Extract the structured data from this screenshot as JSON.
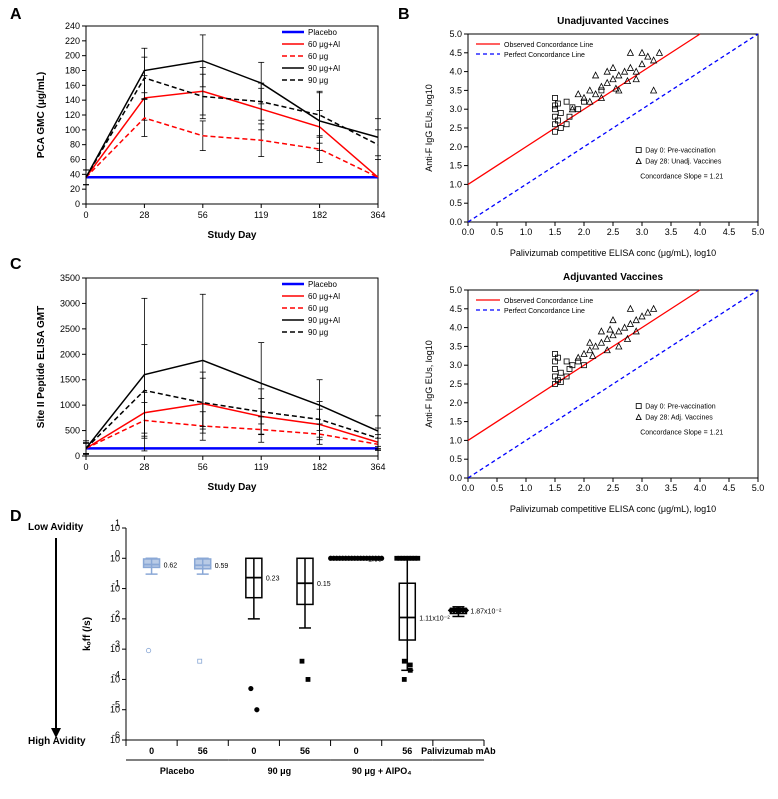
{
  "panels": {
    "A": "A",
    "B": "B",
    "C": "C",
    "D": "D"
  },
  "chartA": {
    "type": "line",
    "title": "",
    "xlabel": "Study Day",
    "ylabel": "PCA GMC (μg/mL)",
    "xcats": [
      "0",
      "28",
      "56",
      "119",
      "182",
      "364"
    ],
    "ylim": [
      0,
      240
    ],
    "ytick_step": 20,
    "series": [
      {
        "label": "Placebo",
        "color": "#0000ff",
        "dash": "0",
        "width": 2.5,
        "y": [
          36,
          36,
          36,
          36,
          36,
          36
        ],
        "err": [
          0,
          0,
          0,
          0,
          0,
          0
        ]
      },
      {
        "label": "60 μg+Al",
        "color": "#ff0000",
        "dash": "0",
        "width": 1.5,
        "y": [
          36,
          143,
          152,
          128,
          104,
          36
        ],
        "err": [
          10,
          30,
          32,
          28,
          22,
          0
        ]
      },
      {
        "label": "60 μg",
        "color": "#ff0000",
        "dash": "5,3",
        "width": 1.5,
        "y": [
          36,
          116,
          92,
          86,
          74,
          36
        ],
        "err": [
          10,
          25,
          20,
          22,
          18,
          0
        ]
      },
      {
        "label": "90 μg+Al",
        "color": "#000000",
        "dash": "0",
        "width": 1.5,
        "y": [
          36,
          180,
          193,
          163,
          112,
          90
        ],
        "err": [
          10,
          30,
          35,
          28,
          40,
          25
        ]
      },
      {
        "label": "90 μg",
        "color": "#000000",
        "dash": "5,3",
        "width": 1.5,
        "y": [
          36,
          170,
          145,
          138,
          120,
          80
        ],
        "err": [
          10,
          28,
          30,
          25,
          30,
          20
        ]
      }
    ]
  },
  "chartC": {
    "type": "line",
    "xlabel": "Study Day",
    "ylabel": "Site II Peptide ELISA GMT",
    "xcats": [
      "0",
      "28",
      "56",
      "119",
      "182",
      "364"
    ],
    "ylim": [
      0,
      3500
    ],
    "ytick_step": 500,
    "series": [
      {
        "label": "Placebo",
        "color": "#0000ff",
        "dash": "0",
        "width": 2.5,
        "y": [
          150,
          150,
          150,
          150,
          150,
          150
        ],
        "err": [
          0,
          0,
          0,
          0,
          0,
          0
        ]
      },
      {
        "label": "60 μg+Al",
        "color": "#ff0000",
        "dash": "0",
        "width": 1.5,
        "y": [
          150,
          850,
          1030,
          780,
          620,
          270
        ],
        "err": [
          100,
          400,
          500,
          350,
          300,
          150
        ]
      },
      {
        "label": "60 μg",
        "color": "#ff0000",
        "dash": "5,3",
        "width": 1.5,
        "y": [
          150,
          700,
          590,
          520,
          430,
          230
        ],
        "err": [
          100,
          350,
          280,
          250,
          200,
          120
        ]
      },
      {
        "label": "90 μg+Al",
        "color": "#000000",
        "dash": "0",
        "width": 1.5,
        "y": [
          150,
          1600,
          1880,
          1430,
          1000,
          490
        ],
        "err": [
          150,
          1500,
          1300,
          800,
          500,
          300
        ]
      },
      {
        "label": "90 μg",
        "color": "#000000",
        "dash": "5,3",
        "width": 1.5,
        "y": [
          150,
          1290,
          1050,
          870,
          720,
          350
        ],
        "err": [
          120,
          900,
          600,
          450,
          350,
          200
        ]
      }
    ]
  },
  "chartB": {
    "titles": [
      "Unadjuvanted Vaccines",
      "Adjuvanted Vaccines"
    ],
    "xlabel": "Palivizumab competitive ELISA conc (μg/mL), log10",
    "ylabel": "Anti-F IgG EUs, log10",
    "xlim": [
      0,
      5
    ],
    "ylim": [
      0,
      5
    ],
    "tick_step": 0.5,
    "obs_line": {
      "label": "Observed Concordance Line",
      "color": "#ff0000",
      "intercept": 1.0,
      "slope": 1.0
    },
    "perfect_line": {
      "label": "Perfect Concordance Line",
      "color": "#0000ff",
      "dash": "4,3"
    },
    "marker_legend": [
      {
        "shape": "square",
        "label": "Day 0: Pre-vaccination"
      },
      {
        "shape": "triangle",
        "label": "Day 28: Unadj. Vaccines"
      }
    ],
    "marker_legend2": [
      {
        "shape": "square",
        "label": "Day 0: Pre-vaccination"
      },
      {
        "shape": "triangle",
        "label": "Day 28: Adj. Vaccines"
      }
    ],
    "slope_annot": "Concordance Slope = 1.21",
    "top": {
      "squares": [
        [
          1.5,
          2.4
        ],
        [
          1.5,
          2.6
        ],
        [
          1.5,
          2.8
        ],
        [
          1.5,
          3.0
        ],
        [
          1.5,
          3.1
        ],
        [
          1.55,
          2.7
        ],
        [
          1.6,
          2.9
        ],
        [
          1.55,
          3.15
        ],
        [
          1.7,
          3.2
        ],
        [
          1.8,
          3.05
        ],
        [
          1.7,
          2.6
        ],
        [
          1.75,
          2.8
        ],
        [
          1.9,
          3.0
        ],
        [
          2.0,
          3.2
        ],
        [
          1.6,
          2.5
        ],
        [
          1.5,
          3.3
        ],
        [
          2.3,
          3.5
        ]
      ],
      "triangles": [
        [
          1.8,
          3.0
        ],
        [
          2.0,
          3.3
        ],
        [
          2.1,
          3.5
        ],
        [
          2.2,
          3.4
        ],
        [
          2.3,
          3.6
        ],
        [
          2.4,
          3.7
        ],
        [
          2.5,
          3.8
        ],
        [
          2.6,
          3.9
        ],
        [
          2.7,
          4.0
        ],
        [
          2.8,
          4.1
        ],
        [
          2.9,
          4.0
        ],
        [
          3.0,
          4.2
        ],
        [
          3.1,
          4.4
        ],
        [
          3.2,
          4.3
        ],
        [
          3.3,
          4.5
        ],
        [
          3.0,
          4.5
        ],
        [
          2.8,
          4.5
        ],
        [
          2.5,
          4.1
        ],
        [
          2.2,
          3.9
        ],
        [
          2.4,
          4.0
        ],
        [
          2.6,
          3.5
        ],
        [
          2.9,
          3.8
        ],
        [
          3.2,
          3.5
        ],
        [
          1.9,
          3.4
        ],
        [
          2.1,
          3.2
        ],
        [
          2.3,
          3.3
        ],
        [
          2.55,
          3.55
        ],
        [
          2.75,
          3.75
        ]
      ]
    },
    "bottom": {
      "squares": [
        [
          1.5,
          2.5
        ],
        [
          1.5,
          2.7
        ],
        [
          1.5,
          2.9
        ],
        [
          1.5,
          3.1
        ],
        [
          1.5,
          3.3
        ],
        [
          1.55,
          2.6
        ],
        [
          1.6,
          2.8
        ],
        [
          1.55,
          3.2
        ],
        [
          1.7,
          3.1
        ],
        [
          1.8,
          3.0
        ],
        [
          1.7,
          2.7
        ],
        [
          1.75,
          2.9
        ],
        [
          1.9,
          3.1
        ],
        [
          2.0,
          3.0
        ],
        [
          1.6,
          2.55
        ]
      ],
      "triangles": [
        [
          1.9,
          3.2
        ],
        [
          2.0,
          3.3
        ],
        [
          2.1,
          3.4
        ],
        [
          2.2,
          3.5
        ],
        [
          2.3,
          3.6
        ],
        [
          2.4,
          3.7
        ],
        [
          2.5,
          3.8
        ],
        [
          2.6,
          3.9
        ],
        [
          2.7,
          4.0
        ],
        [
          2.8,
          4.1
        ],
        [
          2.9,
          4.2
        ],
        [
          3.0,
          4.3
        ],
        [
          3.1,
          4.4
        ],
        [
          3.2,
          4.5
        ],
        [
          2.8,
          4.5
        ],
        [
          2.5,
          4.2
        ],
        [
          2.3,
          3.9
        ],
        [
          2.6,
          3.5
        ],
        [
          2.9,
          3.9
        ],
        [
          2.1,
          3.6
        ],
        [
          2.4,
          3.4
        ],
        [
          2.75,
          3.7
        ],
        [
          2.15,
          3.25
        ],
        [
          2.45,
          3.95
        ]
      ]
    }
  },
  "chartD": {
    "type": "scatter-log",
    "ylabel": "kₒff (/s)",
    "avidity_low": "Low Avidity",
    "avidity_high": "High Avidity",
    "ylim_exp": [
      -6,
      1
    ],
    "groups_top": [
      "0",
      "56",
      "0",
      "56",
      "0",
      "56",
      "Palivizumab mAb"
    ],
    "groups_bottom": [
      "Placebo",
      "90 μg",
      "90 μg + AlPO₄",
      ""
    ],
    "box_color_placebo": "#8aa8d6",
    "columns": [
      {
        "x": 0,
        "fill": "#8aa8d6",
        "shape": "circle",
        "median": 0.62,
        "q1": 0.5,
        "q3": 0.95,
        "wlo": 0.3,
        "whi": 1.0,
        "points": [
          0.0009
        ],
        "median_label": "0.62"
      },
      {
        "x": 1,
        "fill": "#8aa8d6",
        "shape": "square",
        "median": 0.59,
        "q1": 0.45,
        "q3": 0.95,
        "wlo": 0.3,
        "whi": 1.0,
        "points": [
          0.0004
        ],
        "median_label": "0.59"
      },
      {
        "x": 2,
        "fill": "#000000",
        "shape": "circle",
        "median": 0.23,
        "q1": 0.05,
        "q3": 1.0,
        "wlo": 0.01,
        "whi": 1.0,
        "points": [
          5e-05,
          1e-05
        ],
        "median_label": "0.23"
      },
      {
        "x": 3,
        "fill": "#000000",
        "shape": "square",
        "median": 0.15,
        "q1": 0.03,
        "q3": 1.0,
        "wlo": 0.005,
        "whi": 1.0,
        "points": [
          0.0004,
          0.0001
        ],
        "median_label": "0.15"
      },
      {
        "x": 4,
        "fill": "#000000",
        "shape": "circle",
        "median": 1.0,
        "q1": 0.98,
        "q3": 1.0,
        "wlo": 0.97,
        "whi": 1.0,
        "points": [],
        "median_label": "1.00",
        "top_points_n": 18
      },
      {
        "x": 5,
        "fill": "#000000",
        "shape": "square",
        "median": 0.0111,
        "q1": 0.002,
        "q3": 0.15,
        "wlo": 0.0002,
        "whi": 1.0,
        "points": [
          0.0001,
          0.0002,
          0.0004,
          0.0003
        ],
        "median_label": "1.11x10⁻²",
        "top_points_n": 8
      },
      {
        "x": 6,
        "fill": "#000000",
        "shape": "diamond",
        "median": 0.0187,
        "q1": 0.015,
        "q3": 0.022,
        "wlo": 0.012,
        "whi": 0.025,
        "points": [],
        "median_label": "1.87x10⁻²",
        "top_points_n": 6,
        "top_y": 0.019
      }
    ]
  },
  "colors": {
    "placebo": "#0000ff",
    "red": "#ff0000",
    "black": "#000000",
    "blue_box": "#8aa8d6"
  }
}
